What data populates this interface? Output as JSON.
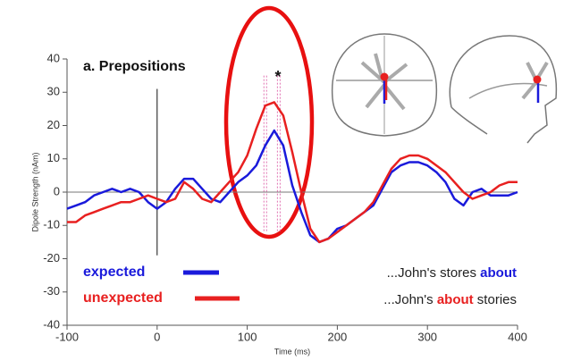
{
  "chart_data": {
    "type": "line",
    "title": "a. Prepositions",
    "significance_label": "*",
    "x_label": "Time (ms)",
    "y_label": "Dipole Strength (nAm)",
    "x": [
      -100,
      -90,
      -80,
      -70,
      -60,
      -50,
      -40,
      -30,
      -20,
      -10,
      0,
      10,
      20,
      30,
      40,
      50,
      60,
      70,
      80,
      90,
      100,
      110,
      120,
      130,
      140,
      150,
      160,
      170,
      180,
      190,
      200,
      210,
      220,
      230,
      240,
      250,
      260,
      270,
      280,
      290,
      300,
      310,
      320,
      330,
      340,
      350,
      360,
      370,
      380,
      390,
      400
    ],
    "series": [
      {
        "name": "expected",
        "color": "#1a1adb",
        "values": [
          -5,
          -4,
          -3,
          -1,
          0,
          1,
          0,
          1,
          0,
          -3,
          -5,
          -3,
          1,
          4,
          4,
          1,
          -2,
          -3,
          0,
          3,
          5,
          8,
          14,
          18.5,
          14,
          2,
          -6,
          -13,
          -15,
          -14,
          -11,
          -10,
          -8,
          -6,
          -4,
          1,
          6,
          8,
          9,
          9,
          8,
          6,
          3,
          -2,
          -4,
          0,
          1,
          -1,
          -1,
          -1,
          0
        ]
      },
      {
        "name": "unexpected",
        "color": "#e82020",
        "values": [
          -9,
          -9,
          -7,
          -6,
          -5,
          -4,
          -3,
          -3,
          -2,
          -1,
          -2,
          -3,
          -2,
          3,
          1,
          -2,
          -3,
          0,
          3,
          6,
          11,
          19,
          26,
          27,
          23,
          12,
          0,
          -11,
          -15,
          -14,
          -12,
          -10,
          -8,
          -6,
          -3,
          2,
          7,
          10,
          11,
          11,
          10,
          8,
          6,
          3,
          0,
          -2,
          -1,
          0,
          2,
          3,
          3
        ]
      }
    ],
    "significance_x": [
      120,
      135
    ],
    "xlim": [
      -100,
      400
    ],
    "xticks": [
      -100,
      0,
      100,
      200,
      300,
      400
    ],
    "ylim": [
      -40,
      40
    ],
    "yticks": [
      -40,
      -30,
      -20,
      -10,
      0,
      10,
      20,
      30,
      40
    ],
    "annotations": [
      [
        "...John's stores ",
        "about"
      ],
      [
        "...John's ",
        "about",
        " stories"
      ]
    ]
  }
}
